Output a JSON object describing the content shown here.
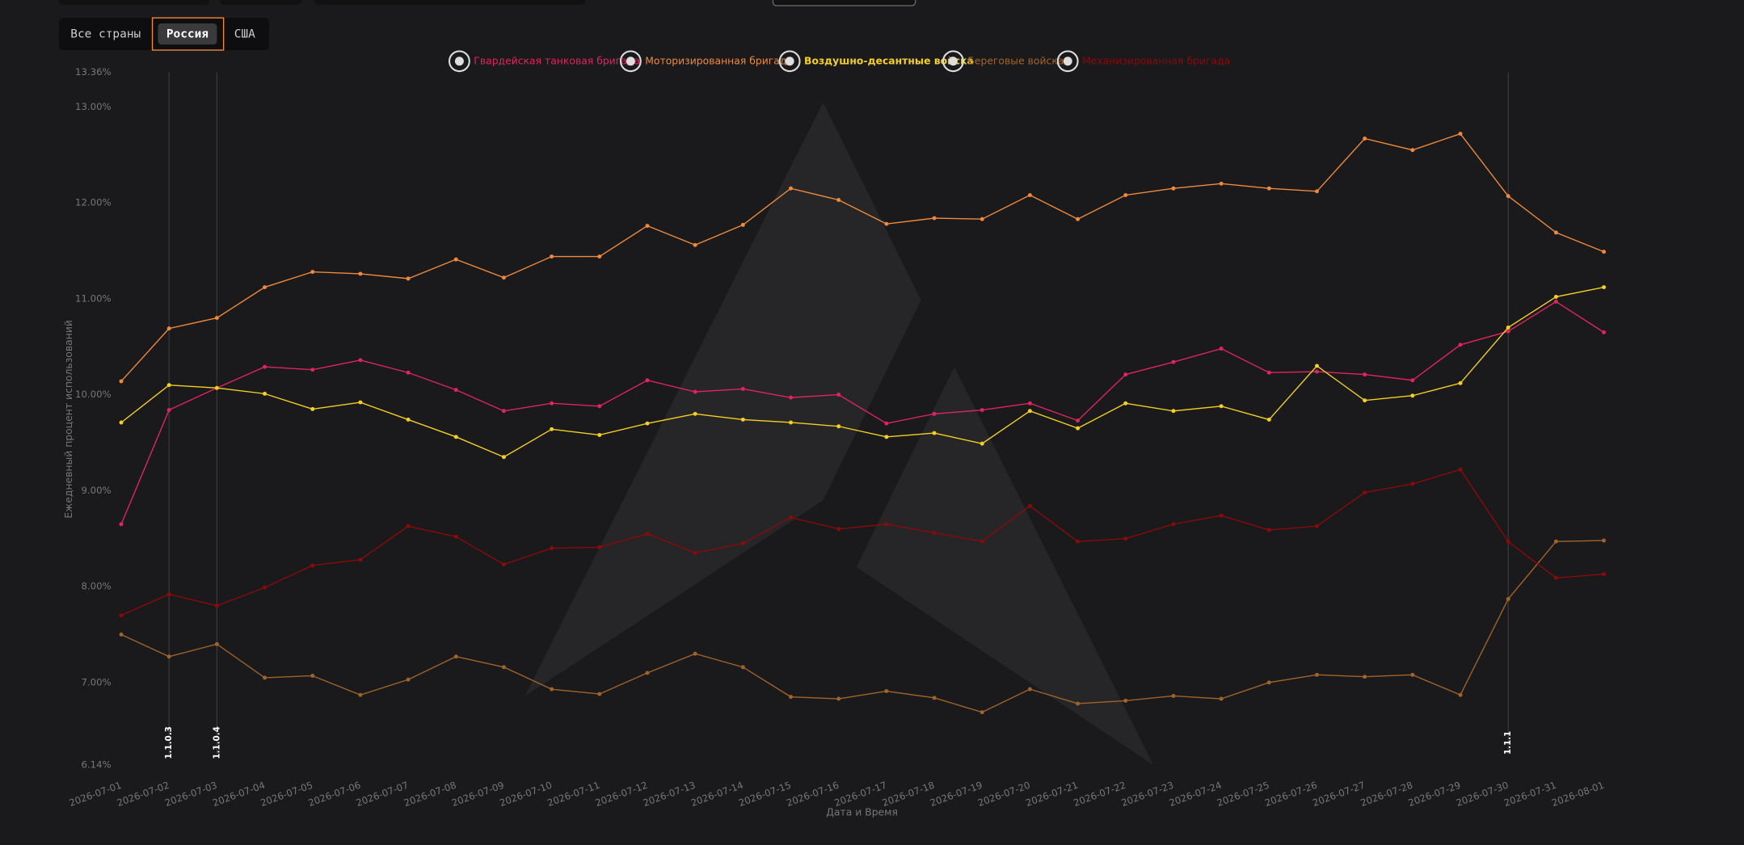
{
  "filters": {
    "countries": [
      "Все страны",
      "Россия",
      "США"
    ],
    "active": 1
  },
  "chart_data": {
    "type": "line",
    "y_label": "Ежедневный процент использований",
    "x_label": "Дата и Время",
    "x": [
      "2026-07-01",
      "2026-07-02",
      "2026-07-03",
      "2026-07-04",
      "2026-07-05",
      "2026-07-06",
      "2026-07-07",
      "2026-07-08",
      "2026-07-09",
      "2026-07-10",
      "2026-07-11",
      "2026-07-12",
      "2026-07-13",
      "2026-07-14",
      "2026-07-15",
      "2026-07-16",
      "2026-07-17",
      "2026-07-18",
      "2026-07-19",
      "2026-07-20",
      "2026-07-21",
      "2026-07-22",
      "2026-07-23",
      "2026-07-24",
      "2026-07-25",
      "2026-07-26",
      "2026-07-27",
      "2026-07-28",
      "2026-07-29",
      "2026-07-30",
      "2026-07-31",
      "2026-08-01"
    ],
    "ylim": [
      6.14,
      13.36
    ],
    "yticks": [
      {
        "value": 6.14,
        "label": "6.14%"
      },
      {
        "value": 7,
        "label": "7.00%"
      },
      {
        "value": 8,
        "label": "8.00%"
      },
      {
        "value": 9,
        "label": "9.00%"
      },
      {
        "value": 10,
        "label": "10.00%"
      },
      {
        "value": 11,
        "label": "11.00%"
      },
      {
        "value": 12,
        "label": "12.00%"
      },
      {
        "value": 13,
        "label": "13.00%"
      },
      {
        "value": 13.36,
        "label": "13.36%"
      }
    ],
    "grid": false,
    "series": [
      {
        "name": "Гвардейская танковая бригада",
        "color": "#e0245e",
        "values": [
          8.65,
          9.84,
          10.07,
          10.29,
          10.26,
          10.36,
          10.23,
          10.05,
          9.83,
          9.91,
          9.88,
          10.15,
          10.03,
          10.06,
          9.97,
          10.0,
          9.7,
          9.8,
          9.84,
          9.91,
          9.73,
          10.21,
          10.34,
          10.48,
          10.23,
          10.24,
          10.21,
          10.15,
          10.52,
          10.66,
          10.97,
          10.65
        ]
      },
      {
        "name": "Моторизированная бригада",
        "color": "#f08a3a",
        "values": [
          10.14,
          10.69,
          10.8,
          11.12,
          11.28,
          11.26,
          11.21,
          11.41,
          11.22,
          11.44,
          11.44,
          11.76,
          11.56,
          11.77,
          12.15,
          12.03,
          11.78,
          11.84,
          11.83,
          12.08,
          11.83,
          12.08,
          12.15,
          12.2,
          12.15,
          12.12,
          12.67,
          12.55,
          12.72,
          12.07,
          11.69,
          11.49
        ]
      },
      {
        "name": "Воздушно-десантные войска",
        "color": "#f5d020",
        "values": [
          9.71,
          10.1,
          10.07,
          10.01,
          9.85,
          9.92,
          9.74,
          9.56,
          9.35,
          9.64,
          9.58,
          9.7,
          9.8,
          9.74,
          9.71,
          9.67,
          9.56,
          9.6,
          9.49,
          9.83,
          9.65,
          9.91,
          9.83,
          9.88,
          9.74,
          10.3,
          9.94,
          9.99,
          10.12,
          10.7,
          11.02,
          11.12
        ]
      },
      {
        "name": "Береговые войска",
        "color": "#a0642a",
        "values": [
          7.5,
          7.27,
          7.4,
          7.05,
          7.07,
          6.87,
          7.03,
          7.27,
          7.16,
          6.93,
          6.88,
          7.1,
          7.3,
          7.16,
          6.85,
          6.83,
          6.91,
          6.84,
          6.69,
          6.93,
          6.78,
          6.81,
          6.86,
          6.83,
          7.0,
          7.08,
          7.06,
          7.08,
          6.87,
          7.87,
          8.47,
          8.48
        ]
      },
      {
        "name": "Механизированная бригада",
        "color": "#8b0a0a",
        "values": [
          7.7,
          7.92,
          7.8,
          7.99,
          8.22,
          8.28,
          8.63,
          8.52,
          8.23,
          8.4,
          8.41,
          8.55,
          8.35,
          8.45,
          8.72,
          8.6,
          8.65,
          8.56,
          8.47,
          8.84,
          8.47,
          8.5,
          8.65,
          8.74,
          8.59,
          8.63,
          8.98,
          9.07,
          9.22,
          8.47,
          8.09,
          8.13
        ]
      }
    ],
    "annotations": [
      {
        "label": "1.1.0.3",
        "x": "2026-07-02"
      },
      {
        "label": "1.1.0.4",
        "x": "2026-07-03"
      },
      {
        "label": "1.1.1",
        "x": "2026-07-30"
      }
    ]
  }
}
